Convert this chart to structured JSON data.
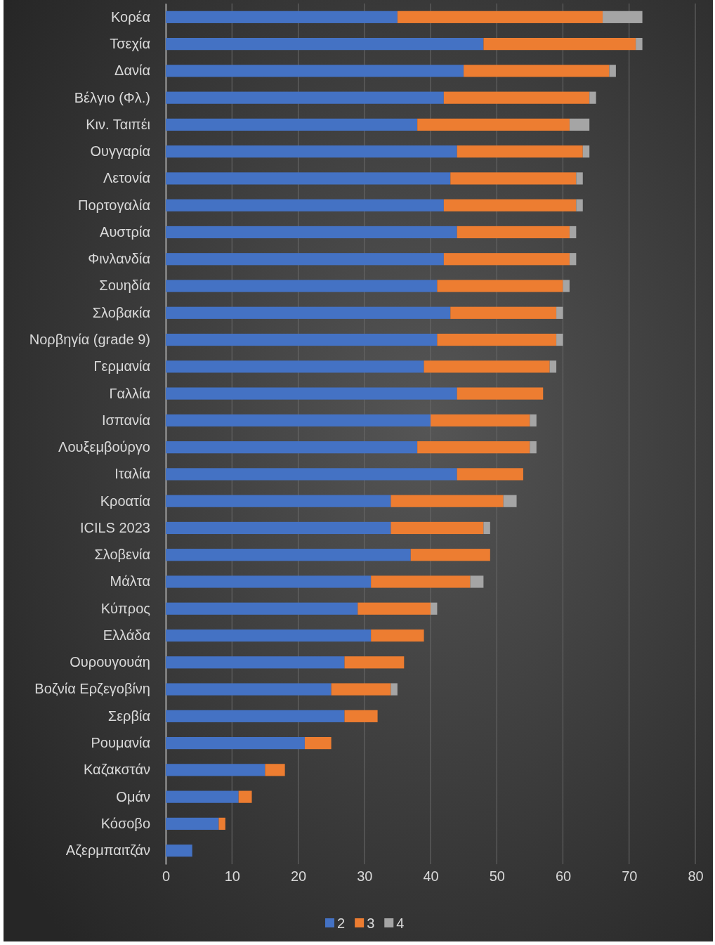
{
  "chart_data": {
    "type": "bar",
    "orientation": "horizontal",
    "stacked": true,
    "categories": [
      "Κορέα",
      "Τσεχία",
      "Δανία",
      "Βέλγιο (Φλ.)",
      "Κιν. Ταιπέι",
      "Ουγγαρία",
      "Λετονία",
      "Πορτογαλία",
      "Αυστρία",
      "Φινλανδία",
      "Σουηδία",
      "Σλοβακία",
      "Νορβηγία (grade 9)",
      "Γερμανία",
      "Γαλλία",
      "Ισπανία",
      "Λουξεμβούργο",
      "Ιταλία",
      "Κροατία",
      "ICILS 2023",
      "Σλοβενία",
      "Μάλτα",
      "Κύπρος",
      "Ελλάδα",
      "Ουρουγουάη",
      "Βοζνία Ερζεγοβίνη",
      "Σερβία",
      "Ρουμανία",
      "Καζακστάν",
      "Ομάν",
      "Κόσοβο",
      "Αζερμπαιτζάν"
    ],
    "series": [
      {
        "name": "2",
        "color": "#4472c4",
        "values": [
          35,
          48,
          45,
          42,
          38,
          44,
          43,
          42,
          44,
          42,
          41,
          43,
          41,
          39,
          44,
          40,
          38,
          44,
          34,
          34,
          37,
          31,
          29,
          31,
          27,
          25,
          27,
          21,
          15,
          11,
          8,
          4
        ]
      },
      {
        "name": "3",
        "color": "#ed7d31",
        "values": [
          31,
          23,
          22,
          22,
          23,
          19,
          19,
          20,
          17,
          19,
          19,
          16,
          18,
          19,
          13,
          15,
          17,
          10,
          17,
          14,
          12,
          15,
          11,
          8,
          9,
          9,
          5,
          4,
          3,
          2,
          1,
          0
        ]
      },
      {
        "name": "4",
        "color": "#a5a5a5",
        "values": [
          6,
          1,
          1,
          1,
          3,
          1,
          1,
          1,
          1,
          1,
          1,
          1,
          1,
          1,
          0,
          1,
          1,
          0,
          2,
          1,
          0,
          2,
          1,
          0,
          0,
          1,
          0,
          0,
          0,
          0,
          0,
          0
        ]
      }
    ],
    "xlim": [
      0,
      80
    ],
    "xticks": [
      0,
      10,
      20,
      30,
      40,
      50,
      60,
      70,
      80
    ],
    "grid": "x",
    "legend": "bottom"
  }
}
